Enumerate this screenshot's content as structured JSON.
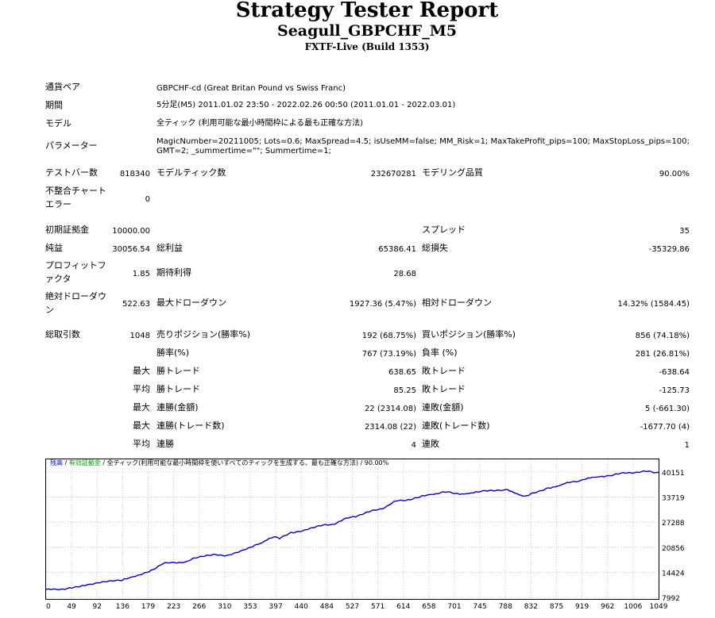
{
  "header": {
    "title": "Strategy Tester Report",
    "subtitle": "Seagull_GBPCHF_M5",
    "server": "FXTF-Live (Build 1353)"
  },
  "settings": {
    "symbol_label": "通貨ペア",
    "symbol_value": "GBPCHF-cd (Great Britan Pound vs Swiss Franc)",
    "period_label": "期間",
    "period_value": "5分足(M5) 2011.01.02 23:50 - 2022.02.26 00:50 (2011.01.01 - 2022.03.01)",
    "model_label": "モデル",
    "model_value": "全ティック (利用可能な最小時間枠による最も正確な方法)",
    "params_label": "パラメーター",
    "params_line1": "MagicNumber=20211005; Lots=0.6; MaxSpread=4.5; isUseMM=false; MM_Risk=1; MaxTakeProfit_pips=100; MaxStopLoss_pips=100;",
    "params_line2": "GMT=2; _summertime=\"\"; Summertime=1;"
  },
  "stats": {
    "bars_label": "テストバー数",
    "bars_value": "818340",
    "ticks_label": "モデルティック数",
    "ticks_value": "232670281",
    "quality_label": "モデリング品質",
    "quality_value": "90.00%",
    "mismatch_label_1": "不整合チャート",
    "mismatch_label_2": "エラー",
    "mismatch_value": "0",
    "deposit_label": "初期証拠金",
    "deposit_value": "10000.00",
    "spread_label": "スプレッド",
    "spread_value": "35",
    "net_label": "純益",
    "net_value": "30056.54",
    "gross_profit_label": "総利益",
    "gross_profit_value": "65386.41",
    "gross_loss_label": "総損失",
    "gross_loss_value": "-35329.86",
    "pf_label_1": "プロフィットフ",
    "pf_label_2": "ァクタ",
    "pf_value": "1.85",
    "expected_label": "期待利得",
    "expected_value": "28.68",
    "abs_dd_label_1": "絶対ドローダウ",
    "abs_dd_label_2": "ン",
    "abs_dd_value": "522.63",
    "max_dd_label": "最大ドローダウン",
    "max_dd_value": "1927.36 (5.47%)",
    "rel_dd_label": "相対ドローダウン",
    "rel_dd_value": "14.32% (1584.45)",
    "trades_label": "総取引数",
    "trades_value": "1048",
    "short_label": "売りポジション(勝率%)",
    "short_value": "192 (68.75%)",
    "long_label": "買いポジション(勝率%)",
    "long_value": "856 (74.18%)",
    "win_rate_label": "勝率(%)",
    "win_rate_value": "767 (73.19%)",
    "loss_rate_label": "負率 (%)",
    "loss_rate_value": "281 (26.81%)",
    "largest_label": "最大",
    "largest_win_label": "勝トレード",
    "largest_win_value": "638.65",
    "largest_loss_label": "敗トレード",
    "largest_loss_value": "-638.64",
    "average_label": "平均",
    "avg_win_label": "勝トレード",
    "avg_win_value": "85.25",
    "avg_loss_label": "敗トレード",
    "avg_loss_value": "-125.73",
    "max_label_1": "最大",
    "cons_wins_money_label": "連勝(金額)",
    "cons_wins_money_value": "22 (2314.08)",
    "cons_losses_money_label": "連敗(金額)",
    "cons_losses_money_value": "5 (-661.30)",
    "max_label_2": "最大",
    "cons_profit_count_label": "連勝(トレード数)",
    "cons_profit_count_value": "2314.08 (22)",
    "cons_loss_count_label": "連敗(トレード数)",
    "cons_loss_count_value": "-1677.70 (4)",
    "avg_label_2": "平均",
    "avg_cons_wins_label": "連勝",
    "avg_cons_wins_value": "4",
    "avg_cons_losses_label": "連敗",
    "avg_cons_losses_value": "1"
  },
  "legend": {
    "balance": "残高",
    "sep1": " / ",
    "equity": "有効証拠金",
    "sep2": " / ",
    "rest": "全ティック(利用可能な最小時間枠を使いすべてのティックを生成する、最も正確な方法) / 90.00%"
  },
  "chart_data": {
    "type": "line",
    "xlim": [
      0,
      1049
    ],
    "ylim": [
      7992,
      40151
    ],
    "x_ticks": [
      "0",
      "49",
      "92",
      "136",
      "179",
      "223",
      "266",
      "310",
      "353",
      "397",
      "440",
      "484",
      "527",
      "571",
      "614",
      "658",
      "701",
      "745",
      "788",
      "832",
      "875",
      "919",
      "962",
      "1006",
      "1049"
    ],
    "y_ticks": [
      "40151",
      "33719",
      "27288",
      "20856",
      "14424",
      "7992"
    ],
    "grid": true,
    "colors": {
      "balance": "#0000c8",
      "grid": "#c8c8c8",
      "border": "#000000"
    },
    "series": [
      {
        "name": "残高",
        "x": [
          0,
          20,
          40,
          70,
          100,
          130,
          150,
          180,
          200,
          220,
          240,
          260,
          290,
          310,
          340,
          370,
          390,
          400,
          420,
          440,
          470,
          490,
          510,
          530,
          560,
          580,
          600,
          620,
          640,
          660,
          680,
          700,
          720,
          740,
          760,
          790,
          810,
          820,
          830,
          860,
          880,
          900,
          920,
          940,
          960,
          980,
          1000,
          1020,
          1049
        ],
        "y": [
          10000,
          9900,
          10500,
          11200,
          12000,
          12300,
          13300,
          15000,
          16600,
          16900,
          17200,
          18200,
          19000,
          18800,
          20200,
          22000,
          23500,
          23000,
          24700,
          25100,
          26300,
          26700,
          28100,
          28600,
          30400,
          31000,
          32700,
          33100,
          33700,
          34400,
          35100,
          34600,
          34600,
          35000,
          35500,
          35700,
          34300,
          34000,
          34600,
          36100,
          36700,
          37600,
          38200,
          38800,
          39200,
          39600,
          40000,
          40300,
          40050
        ]
      }
    ]
  }
}
